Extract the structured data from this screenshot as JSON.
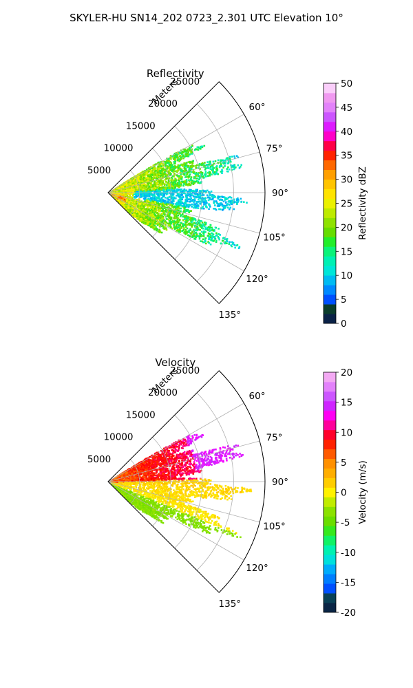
{
  "figure": {
    "title": "SKYLER-HU  SN14_202  0723_2.301 UTC Elevation 10°"
  },
  "chart_data": [
    {
      "type": "heatmap",
      "title": "Reflectivity",
      "radial_label": "Meters",
      "r_ticks": [
        5000,
        10000,
        15000,
        20000,
        25000
      ],
      "r_tick_labels": [
        "5000",
        "10000",
        "15000",
        "20000",
        "25000"
      ],
      "r_max": 25000,
      "theta_ticks": [
        60,
        75,
        90,
        105,
        120,
        135
      ],
      "theta_tick_labels": [
        "60°",
        "75°",
        "90°",
        "105°",
        "120°",
        "135°"
      ],
      "theta_range": [
        45,
        135
      ],
      "grid": true,
      "colorbar": {
        "label": "Reflectivity dBZ",
        "range": [
          0,
          50
        ],
        "ticks": [
          0,
          5,
          10,
          15,
          20,
          25,
          30,
          35,
          40,
          45,
          50
        ],
        "tick_labels": [
          "0",
          "5",
          "10",
          "15",
          "20",
          "25",
          "30",
          "35",
          "40",
          "45",
          "50"
        ],
        "step": 2,
        "stops": [
          [
            0,
            "#0a1555"
          ],
          [
            3,
            "#0b3d2c"
          ],
          [
            5,
            "#0050ff"
          ],
          [
            8,
            "#00a6ff"
          ],
          [
            11,
            "#00e6d8"
          ],
          [
            14,
            "#00f5a0"
          ],
          [
            17,
            "#22ee2a"
          ],
          [
            19,
            "#66dd00"
          ],
          [
            21,
            "#8fe200"
          ],
          [
            24,
            "#d6f000"
          ],
          [
            26,
            "#fff200"
          ],
          [
            29,
            "#ffc400"
          ],
          [
            32,
            "#ff8c00"
          ],
          [
            34,
            "#ff4400"
          ],
          [
            36,
            "#ff0000"
          ],
          [
            38,
            "#ff0090"
          ],
          [
            40,
            "#ff00ff"
          ],
          [
            42,
            "#bb33ff"
          ],
          [
            44,
            "#dd77ff"
          ],
          [
            47,
            "#f099f0"
          ],
          [
            50,
            "#ffe8ff"
          ]
        ]
      },
      "echo_region": {
        "description_values_dbz": {
          "near_range_mean": 24,
          "mid_range_mean": 18,
          "far_range_mean": 14,
          "central_band_mean": 11
        },
        "azimuth_extent": [
          55,
          135
        ],
        "range_extent": [
          0,
          21500
        ]
      }
    },
    {
      "type": "heatmap",
      "title": "Velocity",
      "radial_label": "Meters",
      "r_ticks": [
        5000,
        10000,
        15000,
        20000,
        25000
      ],
      "r_tick_labels": [
        "5000",
        "10000",
        "15000",
        "20000",
        "25000"
      ],
      "r_max": 25000,
      "theta_ticks": [
        60,
        75,
        90,
        105,
        120,
        135
      ],
      "theta_tick_labels": [
        "60°",
        "75°",
        "90°",
        "105°",
        "120°",
        "135°"
      ],
      "theta_range": [
        45,
        135
      ],
      "grid": true,
      "colorbar": {
        "label": "Velocity (m/s)",
        "range": [
          -20,
          20
        ],
        "ticks": [
          -20,
          -15,
          -10,
          -5,
          0,
          5,
          10,
          15,
          20
        ],
        "tick_labels": [
          "-20",
          "-15",
          "-10",
          "-5",
          "0",
          "5",
          "10",
          "15",
          "20"
        ],
        "step": 1.6,
        "stops": [
          [
            -20,
            "#0a1555"
          ],
          [
            -18,
            "#0b3d2c"
          ],
          [
            -16,
            "#0050ff"
          ],
          [
            -13,
            "#00a6ff"
          ],
          [
            -11,
            "#00e6d8"
          ],
          [
            -9,
            "#00f5a0"
          ],
          [
            -7,
            "#22ee2a"
          ],
          [
            -5,
            "#66dd00"
          ],
          [
            -3,
            "#8fe200"
          ],
          [
            -1,
            "#d6f000"
          ],
          [
            0,
            "#fff200"
          ],
          [
            2,
            "#ffc400"
          ],
          [
            5,
            "#ff8c00"
          ],
          [
            7,
            "#ff4400"
          ],
          [
            9,
            "#ff0000"
          ],
          [
            11,
            "#ff0090"
          ],
          [
            13,
            "#ff00ff"
          ],
          [
            15,
            "#bb33ff"
          ],
          [
            17,
            "#dd77ff"
          ],
          [
            19,
            "#f099f0"
          ],
          [
            20,
            "#ffe8ff"
          ]
        ]
      },
      "echo_region": {
        "description_values_ms": {
          "north_sector_mean": 9,
          "north_far_mean": 13,
          "central_sector_mean": 1,
          "south_sector_mean": -4
        },
        "azimuth_extent": [
          55,
          135
        ],
        "range_extent": [
          0,
          21500
        ]
      }
    }
  ]
}
